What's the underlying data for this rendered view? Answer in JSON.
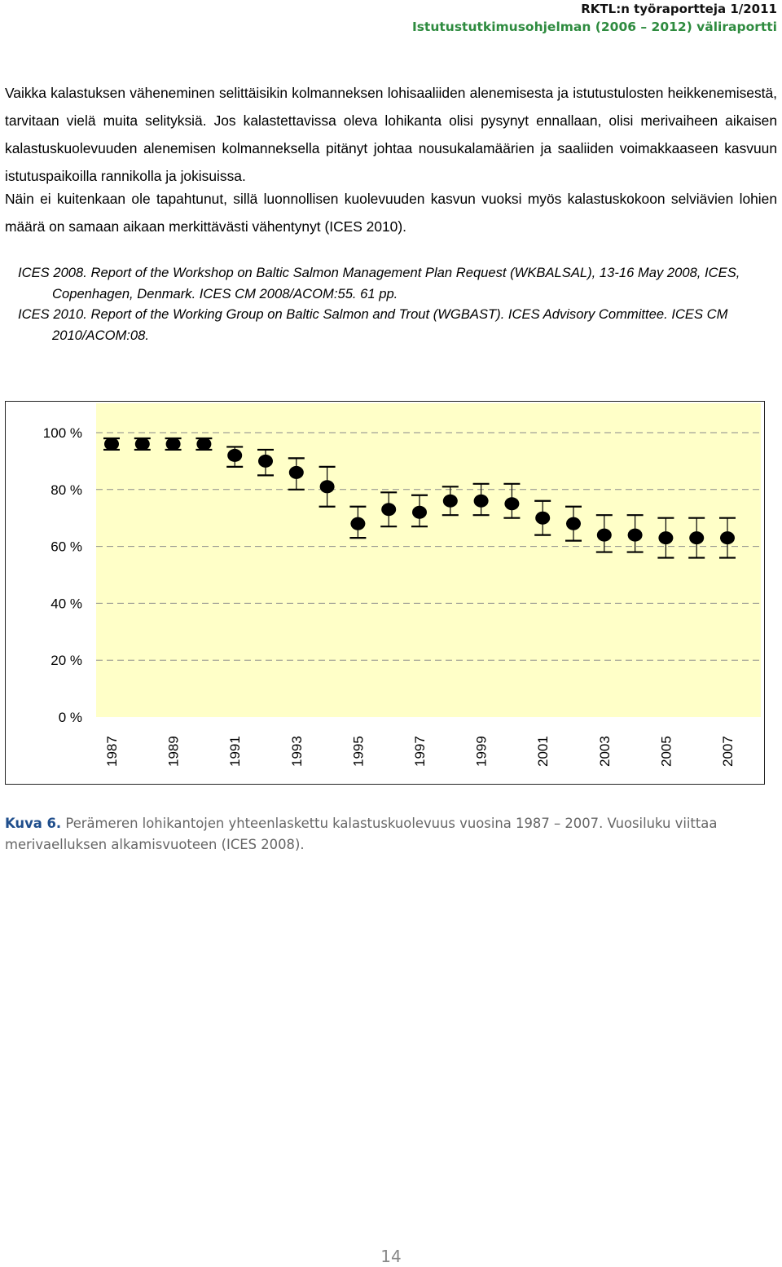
{
  "header": {
    "line1": "RKTL:n työraportteja 1/2011",
    "line2": "Istutustutkimusohjelman (2006 – 2012) väliraportti"
  },
  "body_text": {
    "paragraph1": "Vaikka kalastuksen väheneminen selittäisikin kolmanneksen lohisaaliiden alenemisesta ja istutustulosten heikkenemisestä, tarvitaan vielä muita selityksiä. Jos kalastettavissa oleva lohikanta olisi pysynyt ennallaan, olisi merivaiheen aikaisen kalastuskuolevuuden alenemisen kolmanneksella pitänyt johtaa nousukalamäärien ja saaliiden voimakkaaseen kasvuun istutuspaikoilla rannikolla ja jokisuissa.",
    "paragraph2": "Näin ei kuitenkaan ole tapahtunut, sillä luonnollisen kuolevuuden kasvun vuoksi myös kalastuskokoon selviävien lohien määrä on samaan aikaan merkittävästi vähentynyt (ICES 2010)."
  },
  "references": [
    "ICES 2008. Report of the Workshop on Baltic Salmon Management Plan Request (WKBALSAL), 13-16 May 2008, ICES, Copenhagen, Denmark. ICES CM 2008/ACOM:55. 61 pp.",
    "ICES 2010. Report of the Working Group on Baltic Salmon and Trout (WGBAST). ICES Advisory Committee. ICES CM 2010/ACOM:08."
  ],
  "chart_data": {
    "type": "scatter",
    "title": "",
    "xlabel": "",
    "ylabel": "",
    "y_tick_labels": [
      "100 %",
      "80 %",
      "60 %",
      "40 %",
      "20 %",
      "0 %"
    ],
    "x_tick_labels": [
      "1987",
      "1989",
      "1991",
      "1993",
      "1995",
      "1997",
      "1999",
      "2001",
      "2003",
      "2005",
      "2007"
    ],
    "ylim": [
      0,
      100
    ],
    "grid": "horizontal dashed",
    "plot_background": "#ffffc8",
    "marker_color": "#000000",
    "points": [
      {
        "x": 1987,
        "y": 96,
        "lo": 94,
        "hi": 98
      },
      {
        "x": 1988,
        "y": 96,
        "lo": 94,
        "hi": 98
      },
      {
        "x": 1989,
        "y": 96,
        "lo": 94,
        "hi": 98
      },
      {
        "x": 1990,
        "y": 96,
        "lo": 94,
        "hi": 98
      },
      {
        "x": 1991,
        "y": 92,
        "lo": 88,
        "hi": 95
      },
      {
        "x": 1992,
        "y": 90,
        "lo": 85,
        "hi": 94
      },
      {
        "x": 1993,
        "y": 86,
        "lo": 80,
        "hi": 91
      },
      {
        "x": 1994,
        "y": 81,
        "lo": 74,
        "hi": 88
      },
      {
        "x": 1995,
        "y": 68,
        "lo": 63,
        "hi": 74
      },
      {
        "x": 1996,
        "y": 73,
        "lo": 67,
        "hi": 79
      },
      {
        "x": 1997,
        "y": 72,
        "lo": 67,
        "hi": 78
      },
      {
        "x": 1998,
        "y": 76,
        "lo": 71,
        "hi": 81
      },
      {
        "x": 1999,
        "y": 76,
        "lo": 71,
        "hi": 82
      },
      {
        "x": 2000,
        "y": 75,
        "lo": 70,
        "hi": 82
      },
      {
        "x": 2001,
        "y": 70,
        "lo": 64,
        "hi": 76
      },
      {
        "x": 2002,
        "y": 68,
        "lo": 62,
        "hi": 74
      },
      {
        "x": 2003,
        "y": 64,
        "lo": 58,
        "hi": 71
      },
      {
        "x": 2004,
        "y": 64,
        "lo": 58,
        "hi": 71
      },
      {
        "x": 2005,
        "y": 63,
        "lo": 56,
        "hi": 70
      },
      {
        "x": 2006,
        "y": 63,
        "lo": 56,
        "hi": 70
      },
      {
        "x": 2007,
        "y": 63,
        "lo": 56,
        "hi": 70
      }
    ]
  },
  "caption": {
    "label": "Kuva 6.",
    "text": "Perämeren lohikantojen yhteenlaskettu kalastuskuolevuus vuosina 1987 – 2007. Vuosiluku viittaa merivaelluksen alkamisvuoteen (ICES 2008)."
  },
  "page_number": "14"
}
